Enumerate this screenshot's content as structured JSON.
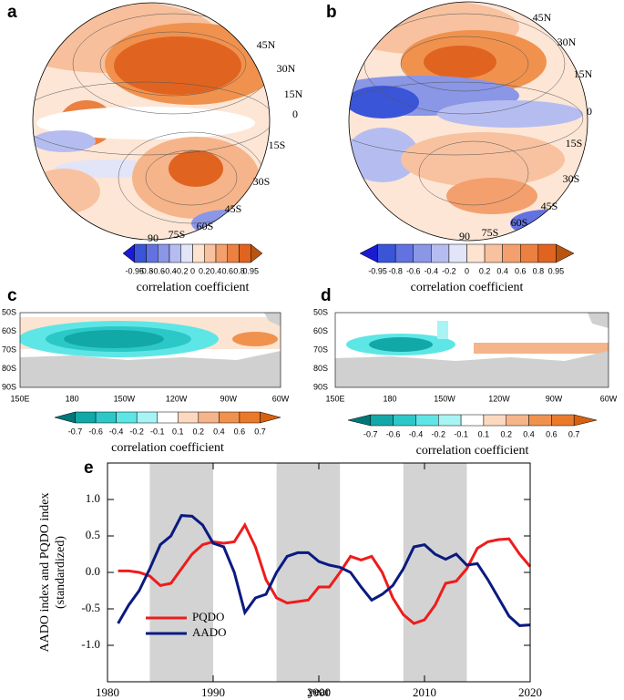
{
  "panels": [
    {
      "label": "a",
      "axis_labels": [
        "45N",
        "30N",
        "15N",
        "0",
        "15S",
        "30S",
        "45S",
        "60S",
        "75S",
        "90"
      ],
      "colorbar": {
        "ticks": [
          -0.95,
          -0.8,
          -0.6,
          -0.4,
          -0.2,
          0,
          0.2,
          0.4,
          0.6,
          0.8,
          0.95
        ],
        "colors": [
          "#1a1ad0",
          "#3a55d8",
          "#6272e0",
          "#8a96e6",
          "#b5bdf0",
          "#e2e4f8",
          "#fde3d0",
          "#f8c2a0",
          "#f3a06e",
          "#ec8040",
          "#e06420",
          "#b85410"
        ],
        "label": "correlation coefficient"
      }
    },
    {
      "label": "b",
      "axis_labels": [
        "45N",
        "30N",
        "15N",
        "0",
        "15S",
        "30S",
        "45S",
        "60S",
        "75S",
        "90"
      ],
      "colorbar": {
        "ticks": [
          -0.95,
          -0.8,
          -0.6,
          -0.4,
          -0.2,
          0,
          0.2,
          0.4,
          0.6,
          0.8,
          0.95
        ],
        "colors": [
          "#1a1ad0",
          "#3a55d8",
          "#6272e0",
          "#8a96e6",
          "#b5bdf0",
          "#e2e4f8",
          "#fde3d0",
          "#f8c2a0",
          "#f3a06e",
          "#ec8040",
          "#e06420",
          "#b85410"
        ],
        "label": "correlation coefficient"
      }
    },
    {
      "label": "c",
      "axis_labels": [
        "50S",
        "60S",
        "70S",
        "80S",
        "90S"
      ],
      "lon_labels": [
        "150E",
        "180",
        "150W",
        "120W",
        "90W",
        "60W"
      ],
      "colorbar": {
        "ticks": [
          -0.7,
          -0.6,
          -0.4,
          -0.2,
          -0.1,
          0.1,
          0.2,
          0.4,
          0.6,
          0.7
        ],
        "colors": [
          "#00787a",
          "#13a8a8",
          "#2cc8c8",
          "#5ee6e6",
          "#a8f4f4",
          "#ffffff",
          "#fbd9c0",
          "#f6b48a",
          "#f0924e",
          "#ea7a2a",
          "#d86010"
        ],
        "label": "correlation coefficient"
      }
    },
    {
      "label": "d",
      "axis_labels": [
        "50S",
        "60S",
        "70S",
        "80S",
        "90S"
      ],
      "lon_labels": [
        "150E",
        "180",
        "150W",
        "120W",
        "90W",
        "60W"
      ],
      "colorbar": {
        "ticks": [
          -0.7,
          -0.6,
          -0.4,
          -0.2,
          -0.1,
          0.1,
          0.2,
          0.4,
          0.6,
          0.7
        ],
        "colors": [
          "#00787a",
          "#13a8a8",
          "#2cc8c8",
          "#5ee6e6",
          "#a8f4f4",
          "#ffffff",
          "#fbd9c0",
          "#f6b48a",
          "#f0924e",
          "#ea7a2a",
          "#d86010"
        ],
        "label": "correlation coefficient"
      }
    }
  ],
  "chart_data": {
    "type": "line",
    "label": "e",
    "xlabel": "year",
    "ylabel": [
      "AADO index and PQDO index",
      "(standardized)"
    ],
    "x": [
      1981,
      1982,
      1983,
      1984,
      1985,
      1986,
      1987,
      1988,
      1989,
      1990,
      1991,
      1992,
      1993,
      1994,
      1995,
      1996,
      1997,
      1998,
      1999,
      2000,
      2001,
      2002,
      2003,
      2004,
      2005,
      2006,
      2007,
      2008,
      2009,
      2010,
      2011,
      2012,
      2013,
      2014,
      2015,
      2016,
      2017,
      2018,
      2019,
      2020
    ],
    "series": [
      {
        "name": "PQDO",
        "color": "#ee1c1c",
        "values": [
          0.02,
          0.02,
          0.0,
          -0.05,
          -0.18,
          -0.15,
          0.05,
          0.25,
          0.38,
          0.42,
          0.4,
          0.42,
          0.65,
          0.35,
          -0.1,
          -0.35,
          -0.42,
          -0.4,
          -0.38,
          -0.2,
          -0.2,
          0.0,
          0.22,
          0.17,
          0.22,
          0.0,
          -0.35,
          -0.58,
          -0.7,
          -0.65,
          -0.45,
          -0.15,
          -0.12,
          0.05,
          0.33,
          0.42,
          0.45,
          0.46,
          0.25,
          0.08
        ]
      },
      {
        "name": "AADO",
        "color": "#0a1a80",
        "values": [
          -0.7,
          -0.45,
          -0.25,
          0.05,
          0.38,
          0.5,
          0.78,
          0.77,
          0.65,
          0.4,
          0.35,
          0.0,
          -0.55,
          -0.35,
          -0.3,
          0.0,
          0.22,
          0.27,
          0.27,
          0.15,
          0.1,
          0.07,
          0.0,
          -0.2,
          -0.38,
          -0.3,
          -0.18,
          0.05,
          0.35,
          0.38,
          0.25,
          0.18,
          0.25,
          0.1,
          0.12,
          -0.1,
          -0.35,
          -0.6,
          -0.73,
          -0.72
        ]
      }
    ],
    "shaded_periods": [
      [
        1984,
        1990
      ],
      [
        1996,
        2002
      ],
      [
        2008,
        2014
      ]
    ],
    "shade_color": "#d3d3d3",
    "xlim": [
      1980,
      2020
    ],
    "xticks": [
      1980,
      1990,
      2000,
      2010,
      2020
    ],
    "ylim": [
      -1.5,
      1.5
    ],
    "yticks": [
      {
        "value": 1.0,
        "label": "1.0"
      },
      {
        "value": 0.5,
        "label": "0.5"
      },
      {
        "value": 0.0,
        "label": "0.0"
      },
      {
        "value": -0.5,
        "label": "-0.5"
      },
      {
        "value": -1.0,
        "label": "-1.0"
      }
    ]
  }
}
